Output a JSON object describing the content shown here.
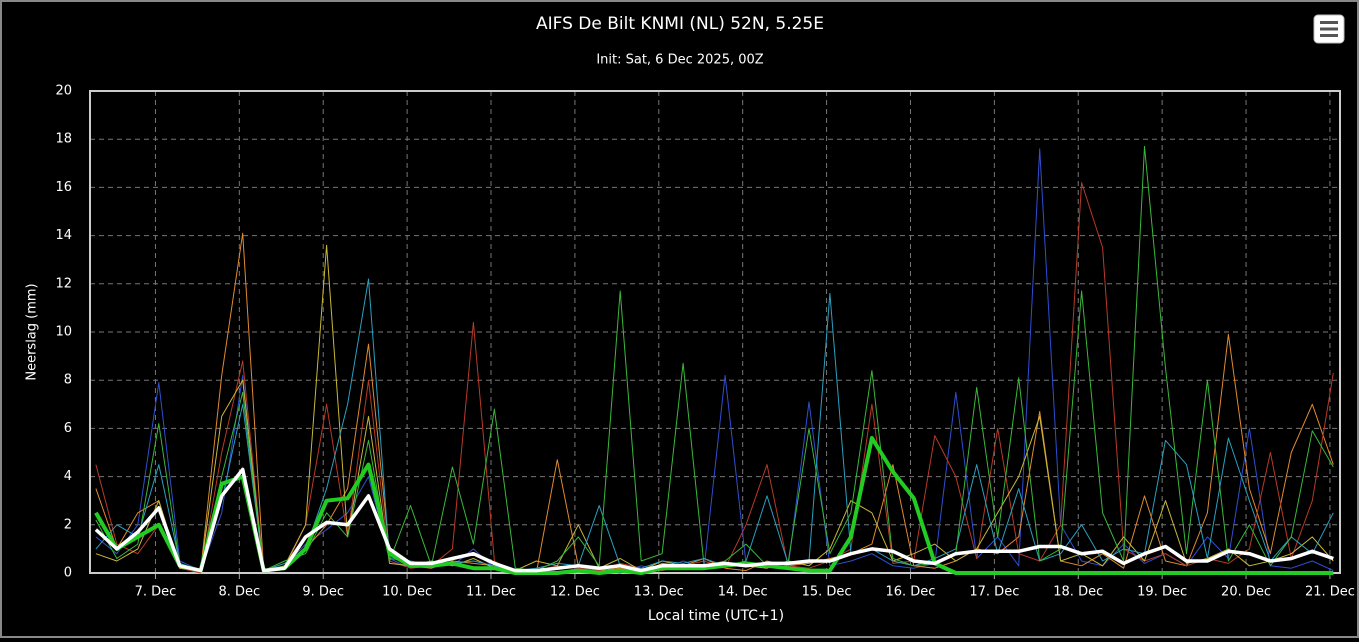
{
  "chart_data": {
    "type": "line",
    "title": "AIFS De Bilt KNMI (NL) 52N, 5.25E",
    "subtitle": "Init: Sat, 6 Dec 2025, 00Z",
    "y_label": "Neerslag (mm)",
    "x_label": "Local time (UTC+1)",
    "grid": true,
    "xlim": [
      6.22,
      21.12
    ],
    "ylim": [
      0,
      20
    ],
    "yticks": [
      0,
      2,
      4,
      6,
      8,
      10,
      12,
      14,
      16,
      18,
      20
    ],
    "xticks": [
      {
        "value": 7,
        "label": "7. Dec"
      },
      {
        "value": 8,
        "label": "8. Dec"
      },
      {
        "value": 9,
        "label": "9. Dec"
      },
      {
        "value": 10,
        "label": "10. Dec"
      },
      {
        "value": 11,
        "label": "11. Dec"
      },
      {
        "value": 12,
        "label": "12. Dec"
      },
      {
        "value": 13,
        "label": "13. Dec"
      },
      {
        "value": 14,
        "label": "14. Dec"
      },
      {
        "value": 15,
        "label": "15. Dec"
      },
      {
        "value": 16,
        "label": "16. Dec"
      },
      {
        "value": 17,
        "label": "17. Dec"
      },
      {
        "value": 18,
        "label": "18. Dec"
      },
      {
        "value": 19,
        "label": "19. Dec"
      },
      {
        "value": 20,
        "label": "20. Dec"
      },
      {
        "value": 21,
        "label": "21. Dec"
      }
    ],
    "x": [
      6.29,
      6.54,
      6.79,
      7.04,
      7.29,
      7.54,
      7.79,
      8.04,
      8.29,
      8.54,
      8.79,
      9.04,
      9.29,
      9.54,
      9.79,
      10.04,
      10.29,
      10.54,
      10.79,
      11.04,
      11.29,
      11.54,
      11.79,
      12.04,
      12.29,
      12.54,
      12.79,
      13.04,
      13.29,
      13.54,
      13.79,
      14.04,
      14.29,
      14.54,
      14.79,
      15.04,
      15.29,
      15.54,
      15.79,
      16.04,
      16.29,
      16.54,
      16.79,
      17.04,
      17.29,
      17.54,
      17.79,
      18.04,
      18.29,
      18.54,
      18.79,
      19.04,
      19.29,
      19.54,
      19.79,
      20.04,
      20.29,
      20.54,
      20.79,
      21.04
    ],
    "series": [
      {
        "color": "#2f4fd0",
        "line_width": 1,
        "values": [
          1.5,
          0.8,
          2.0,
          7.9,
          0.5,
          0.1,
          2.5,
          8.2,
          0.1,
          0.3,
          1.2,
          1.8,
          2.5,
          4.0,
          0.6,
          0.2,
          0.5,
          0.3,
          1.0,
          0.2,
          0.0,
          0.1,
          0.0,
          0.2,
          0.1,
          0.0,
          0.3,
          0.1,
          0.5,
          0.2,
          8.2,
          0.4,
          0.3,
          0.2,
          7.1,
          0.3,
          0.5,
          0.8,
          0.3,
          0.2,
          0.4,
          7.5,
          0.6,
          1.5,
          0.3,
          17.6,
          2.0,
          0.5,
          0.3,
          1.2,
          0.4,
          0.8,
          0.3,
          1.5,
          0.6,
          6.0,
          0.3,
          0.2,
          0.5,
          0.1
        ]
      },
      {
        "color": "#e08a30",
        "line_width": 1,
        "values": [
          3.5,
          1.0,
          2.5,
          3.0,
          0.2,
          0.1,
          8.2,
          14.1,
          0.1,
          0.2,
          1.0,
          2.0,
          3.5,
          9.5,
          0.8,
          0.3,
          0.2,
          0.5,
          0.4,
          0.3,
          0.1,
          0.0,
          4.7,
          0.3,
          0.1,
          0.2,
          0.0,
          0.4,
          0.3,
          0.6,
          0.2,
          0.1,
          0.5,
          0.3,
          0.4,
          0.6,
          0.8,
          1.2,
          4.5,
          0.3,
          0.2,
          0.5,
          1.0,
          0.8,
          1.5,
          6.7,
          0.5,
          0.3,
          0.8,
          0.2,
          3.2,
          0.5,
          0.3,
          2.5,
          9.9,
          3.5,
          0.8,
          5.0,
          7.0,
          4.5
        ]
      },
      {
        "color": "#b83a28",
        "line_width": 1,
        "values": [
          4.5,
          1.2,
          0.8,
          2.0,
          0.2,
          0.0,
          5.0,
          8.8,
          0.1,
          0.2,
          2.0,
          7.0,
          1.5,
          8.0,
          0.5,
          0.2,
          0.3,
          1.0,
          10.4,
          0.5,
          0.0,
          0.1,
          0.3,
          0.2,
          0.1,
          0.4,
          0.2,
          0.1,
          0.3,
          0.5,
          0.2,
          2.0,
          4.5,
          0.3,
          0.2,
          0.5,
          1.0,
          7.0,
          0.4,
          0.5,
          5.7,
          4.0,
          0.6,
          6.0,
          0.8,
          0.5,
          2.0,
          16.2,
          13.5,
          1.0,
          0.5,
          0.8,
          0.3,
          0.6,
          0.4,
          1.0,
          5.0,
          0.6,
          3.0,
          8.3
        ]
      },
      {
        "color": "#c8b838",
        "line_width": 1,
        "values": [
          0.8,
          0.5,
          1.0,
          3.0,
          0.2,
          0.1,
          6.5,
          8.0,
          0.1,
          0.3,
          2.0,
          13.6,
          1.5,
          6.5,
          0.4,
          0.3,
          0.5,
          0.3,
          0.6,
          0.2,
          0.1,
          0.5,
          0.3,
          2.0,
          0.2,
          0.6,
          0.1,
          0.5,
          0.3,
          0.2,
          0.4,
          0.3,
          0.2,
          0.5,
          0.3,
          1.0,
          3.0,
          2.5,
          0.5,
          0.8,
          1.2,
          0.5,
          1.0,
          2.5,
          4.0,
          6.5,
          0.5,
          0.8,
          0.3,
          1.5,
          0.5,
          3.0,
          0.4,
          0.6,
          1.0,
          0.3,
          0.5,
          0.8,
          1.5,
          0.5
        ]
      },
      {
        "color": "#2aa0c0",
        "line_width": 1,
        "values": [
          1.0,
          2.0,
          1.5,
          4.5,
          0.4,
          0.1,
          3.0,
          7.0,
          0.1,
          0.4,
          1.0,
          3.5,
          7.0,
          12.2,
          0.6,
          0.5,
          0.3,
          0.4,
          0.5,
          0.3,
          0.1,
          0.2,
          0.4,
          0.3,
          2.8,
          0.3,
          0.2,
          0.5,
          0.4,
          0.6,
          0.3,
          0.5,
          3.2,
          0.4,
          0.5,
          11.6,
          0.8,
          1.0,
          0.5,
          0.3,
          0.6,
          1.0,
          4.5,
          0.8,
          3.5,
          0.5,
          0.8,
          2.0,
          0.5,
          1.0,
          0.8,
          5.5,
          4.5,
          0.6,
          5.6,
          3.0,
          0.5,
          1.5,
          0.8,
          2.5
        ]
      },
      {
        "color": "#3ab83a",
        "line_width": 1,
        "values": [
          2.2,
          0.6,
          1.2,
          6.2,
          0.3,
          0.1,
          4.0,
          7.5,
          0.1,
          0.5,
          0.8,
          2.5,
          1.5,
          5.5,
          0.5,
          2.8,
          0.3,
          4.4,
          1.2,
          6.8,
          0.2,
          0.1,
          0.5,
          1.5,
          0.3,
          11.7,
          0.5,
          0.8,
          8.7,
          0.3,
          0.5,
          1.2,
          0.3,
          0.4,
          6.0,
          0.8,
          2.5,
          8.4,
          0.6,
          0.3,
          0.4,
          0.8,
          7.7,
          1.5,
          8.1,
          0.5,
          1.0,
          11.7,
          2.5,
          0.5,
          17.7,
          8.5,
          0.8,
          8.0,
          0.5,
          2.0,
          0.3,
          1.5,
          5.9,
          4.4
        ]
      },
      {
        "color": "#22cc22",
        "line_width": 4,
        "values": [
          2.5,
          1.0,
          1.5,
          2.0,
          0.3,
          0.1,
          3.7,
          4.0,
          0.1,
          0.2,
          1.0,
          3.0,
          3.1,
          4.5,
          0.8,
          0.3,
          0.3,
          0.4,
          0.2,
          0.2,
          0.0,
          0.0,
          0.0,
          0.1,
          0.0,
          0.1,
          0.0,
          0.2,
          0.2,
          0.2,
          0.3,
          0.4,
          0.3,
          0.2,
          0.1,
          0.1,
          1.5,
          5.6,
          4.2,
          3.1,
          0.4,
          0.0,
          0.0,
          0.0,
          0.0,
          0.0,
          0.0,
          0.0,
          0.0,
          0.0,
          0.0,
          0.0,
          0.0,
          0.0,
          0.0,
          0.0,
          0.0,
          0.0,
          0.0,
          0.0
        ]
      },
      {
        "color": "#ffffff",
        "line_width": 3.5,
        "values": [
          1.8,
          1.0,
          1.7,
          2.7,
          0.3,
          0.1,
          3.2,
          4.3,
          0.1,
          0.2,
          1.5,
          2.1,
          2.0,
          3.2,
          1.0,
          0.4,
          0.4,
          0.6,
          0.8,
          0.4,
          0.1,
          0.1,
          0.2,
          0.3,
          0.2,
          0.3,
          0.1,
          0.3,
          0.3,
          0.3,
          0.4,
          0.3,
          0.4,
          0.4,
          0.5,
          0.5,
          0.8,
          1.0,
          0.9,
          0.5,
          0.4,
          0.8,
          0.9,
          0.9,
          0.9,
          1.1,
          1.1,
          0.8,
          0.9,
          0.4,
          0.8,
          1.1,
          0.5,
          0.5,
          0.9,
          0.8,
          0.5,
          0.6,
          0.9,
          0.6
        ]
      }
    ]
  }
}
